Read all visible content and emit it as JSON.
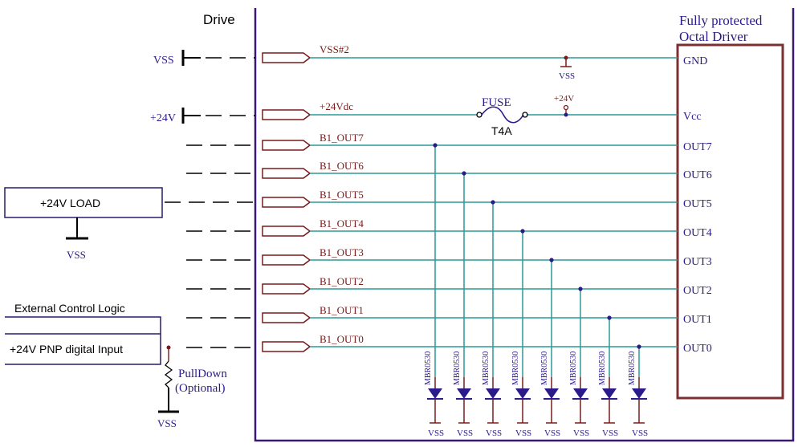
{
  "drive_label": "Drive",
  "driver": {
    "title_line1": "Fully protected",
    "title_line2": "Octal Driver"
  },
  "connectors": [
    {
      "net": "VSS#2",
      "pin": "GND"
    },
    {
      "net": "+24Vdc",
      "pin": "Vcc"
    },
    {
      "net": "B1_OUT7",
      "pin": "OUT7"
    },
    {
      "net": "B1_OUT6",
      "pin": "OUT6"
    },
    {
      "net": "B1_OUT5",
      "pin": "OUT5"
    },
    {
      "net": "B1_OUT4",
      "pin": "OUT4"
    },
    {
      "net": "B1_OUT3",
      "pin": "OUT3"
    },
    {
      "net": "B1_OUT2",
      "pin": "OUT2"
    },
    {
      "net": "B1_OUT1",
      "pin": "OUT1"
    },
    {
      "net": "B1_OUT0",
      "pin": "OUT0"
    }
  ],
  "left_supplies": {
    "vss": "VSS",
    "v24": "+24V"
  },
  "power_symbols": {
    "vss": "VSS",
    "v24": "+24V"
  },
  "fuse": {
    "label": "FUSE",
    "rating": "T4A"
  },
  "load": {
    "label": "+24V LOAD",
    "ground": "VSS"
  },
  "external": {
    "title": "External Control Logic",
    "input_label": "+24V PNP digital Input",
    "pulldown_line1": "PullDown",
    "pulldown_line2": "(Optional)",
    "ground": "VSS"
  },
  "diodes": {
    "part": "MBR0530",
    "ground": "VSS",
    "count": 8
  },
  "colors": {
    "border": "#3a1a6e",
    "wire": "#2b9a9a",
    "component": "#7a1a1a",
    "driver_box": "#7a3030",
    "label_blue": "#2a1a8a",
    "text": "#000000"
  }
}
